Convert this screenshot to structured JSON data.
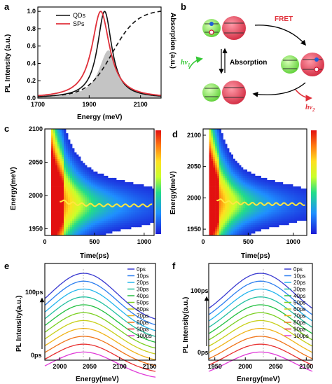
{
  "panels": {
    "a": "a",
    "b": "b",
    "c": "c",
    "d": "d",
    "e": "e",
    "f": "f"
  },
  "colors": {
    "qd": "#111111",
    "sp": "#e0303a",
    "abs": "#111111",
    "fill": "#c4c4c4",
    "scatter_trace": "#ffe840"
  },
  "panel_a": {
    "ylabel": "PL Intensity (a.u.)",
    "ylabel_right": "Absorption (a.u.)",
    "xlabel": "Energy (meV)",
    "legend": [
      "QDs",
      "SPs"
    ],
    "x_ticks": [
      "1700",
      "1900",
      "2100"
    ],
    "y_ticks": [
      "0.0",
      "0.2",
      "0.4",
      "0.6",
      "0.8",
      "1.0"
    ]
  },
  "panel_b": {
    "fret": "FRET",
    "absorption": "Absorption",
    "hv1": "hν",
    "hv1_sub": "1",
    "hv2": "hν",
    "hv2_sub": "2"
  },
  "panel_c": {
    "ylabel": "Energy(meV)",
    "xlabel": "Time(ps)",
    "x_ticks": [
      "0",
      "500",
      "1000"
    ],
    "y_ticks": [
      "2100",
      "2050",
      "2000",
      "1950"
    ]
  },
  "panel_d": {
    "ylabel": "Energy(meV)",
    "xlabel": "Time(ps)",
    "x_ticks": [
      "0",
      "500",
      "1000"
    ],
    "y_ticks": [
      "2100",
      "2050",
      "2000",
      "1950"
    ]
  },
  "panel_e": {
    "ylabel": "PL Intensity(a.u.)",
    "xlabel": "Energy(meV)",
    "x_ticks": [
      "2000",
      "2050",
      "2100",
      "2150"
    ],
    "top_label": "100ps",
    "bottom_label": "0ps",
    "legend": [
      "0ps",
      "10ps",
      "20ps",
      "30ps",
      "40ps",
      "50ps",
      "60ps",
      "70ps",
      "80ps",
      "90ps",
      "100ps"
    ]
  },
  "panel_f": {
    "ylabel": "PL Intensity(a.u.)",
    "xlabel": "Energy(meV)",
    "x_ticks": [
      "1950",
      "2000",
      "2050",
      "2100"
    ],
    "top_label": "100ps",
    "bottom_label": "0ps",
    "legend": [
      "0ps",
      "10ps",
      "20ps",
      "30ps",
      "40ps",
      "50ps",
      "60ps",
      "70ps",
      "80ps",
      "90ps",
      "100ps"
    ]
  },
  "chart_data": [
    {
      "type": "line",
      "panel": "a",
      "x_range": [
        1700,
        2180
      ],
      "ylim": [
        0,
        1.05
      ],
      "series": [
        {
          "name": "QDs",
          "x": [
            1700,
            1800,
            1850,
            1900,
            1930,
            1950,
            1960,
            1970,
            1990,
            2020,
            2060,
            2100
          ],
          "values": [
            0.0,
            0.02,
            0.08,
            0.3,
            0.7,
            0.95,
            1.0,
            0.92,
            0.6,
            0.25,
            0.06,
            0.01
          ]
        },
        {
          "name": "SPs",
          "x": [
            1700,
            1780,
            1820,
            1860,
            1900,
            1930,
            1945,
            1960,
            1980,
            2010,
            2060,
            2100
          ],
          "values": [
            0.0,
            0.03,
            0.1,
            0.3,
            0.65,
            0.92,
            1.0,
            0.9,
            0.6,
            0.25,
            0.04,
            0.01
          ]
        }
      ]
    },
    {
      "type": "heatmap",
      "panel": "c",
      "x_range": [
        0,
        1100
      ],
      "y_range": [
        1940,
        2100
      ],
      "trace_energy": 1985
    },
    {
      "type": "heatmap",
      "panel": "d",
      "x_range": [
        0,
        1150
      ],
      "y_range": [
        1940,
        2110
      ],
      "trace_energy": 1990
    },
    {
      "type": "line",
      "panel": "e",
      "x_range": [
        1975,
        2160
      ],
      "peak_energy": 2040,
      "series_count": 11
    },
    {
      "type": "line",
      "panel": "f",
      "x_range": [
        1940,
        2110
      ],
      "peak_energy": 2025,
      "series_count": 11
    }
  ]
}
